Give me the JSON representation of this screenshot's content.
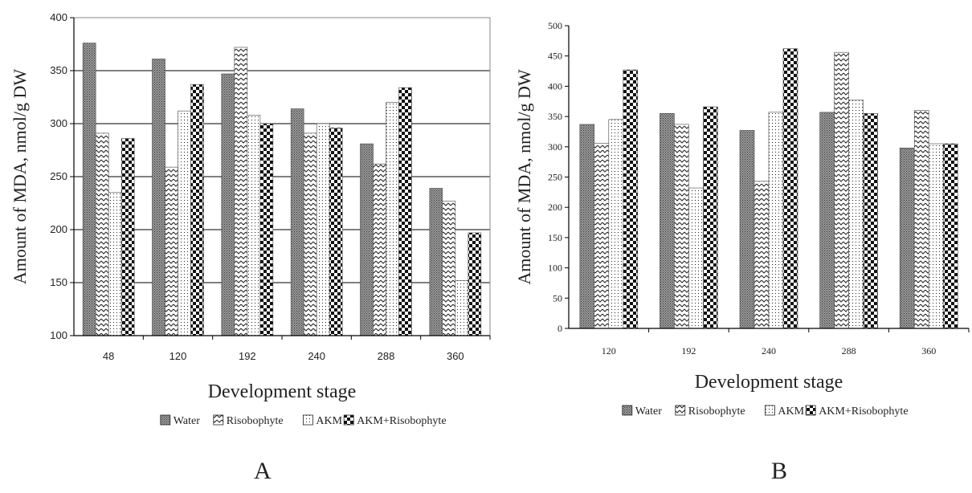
{
  "chart_data": [
    {
      "panel": "A",
      "type": "bar",
      "title": "",
      "xlabel": "Development stage",
      "ylabel": "Amount of MDA, nmol/g DW",
      "ylim": [
        100,
        400
      ],
      "yticks": [
        100,
        150,
        200,
        250,
        300,
        350,
        400
      ],
      "grid": true,
      "legend_position": "bottom",
      "categories": [
        "48",
        "120",
        "192",
        "240",
        "288",
        "360"
      ],
      "series": [
        {
          "name": "Water",
          "pattern": "dense-dots",
          "values": [
            376,
            361,
            347,
            314,
            281,
            239
          ]
        },
        {
          "name": "Risobophyte",
          "pattern": "zigzag",
          "values": [
            291,
            259,
            372,
            291,
            262,
            227
          ]
        },
        {
          "name": "AKM",
          "pattern": "sparse-dots",
          "values": [
            235,
            312,
            308,
            300,
            320,
            152
          ]
        },
        {
          "name": "AKM+Risobophyte",
          "pattern": "checker",
          "values": [
            286,
            337,
            300,
            296,
            334,
            197
          ]
        }
      ]
    },
    {
      "panel": "B",
      "type": "bar",
      "title": "",
      "xlabel": "Development stage",
      "ylabel": "Amount of MDA, nmol/g DW",
      "ylim": [
        0,
        500
      ],
      "yticks": [
        0,
        50,
        100,
        150,
        200,
        250,
        300,
        350,
        400,
        450,
        500
      ],
      "grid": false,
      "legend_position": "bottom",
      "categories": [
        "120",
        "192",
        "240",
        "288",
        "360"
      ],
      "series": [
        {
          "name": "Water",
          "pattern": "dense-dots",
          "values": [
            337,
            355,
            327,
            357,
            298
          ]
        },
        {
          "name": "Risobophyte",
          "pattern": "zigzag",
          "values": [
            306,
            337,
            243,
            456,
            360
          ]
        },
        {
          "name": "AKM",
          "pattern": "sparse-dots",
          "values": [
            345,
            232,
            357,
            377,
            305
          ]
        },
        {
          "name": "AKM+Risobophyte",
          "pattern": "checker",
          "values": [
            427,
            366,
            462,
            355,
            305
          ]
        }
      ]
    }
  ],
  "panel_letters": {
    "a": "A",
    "b": "B"
  }
}
